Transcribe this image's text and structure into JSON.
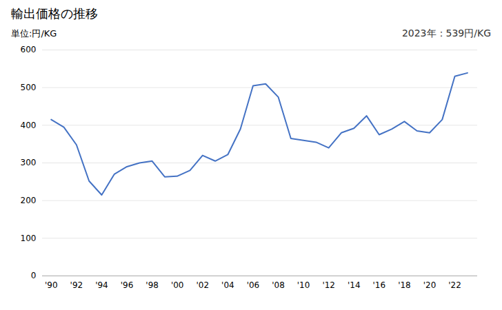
{
  "chart_data": {
    "type": "line",
    "title": "輸出価格の推移",
    "ylabel": "単位:円/KG",
    "annotation": "2023年：539円/KG",
    "x": [
      1990,
      1991,
      1992,
      1993,
      1994,
      1995,
      1996,
      1997,
      1998,
      1999,
      2000,
      2001,
      2002,
      2003,
      2004,
      2005,
      2006,
      2007,
      2008,
      2009,
      2010,
      2011,
      2012,
      2013,
      2014,
      2015,
      2016,
      2017,
      2018,
      2019,
      2020,
      2021,
      2022,
      2023
    ],
    "values": [
      415,
      395,
      348,
      252,
      215,
      270,
      290,
      300,
      305,
      263,
      265,
      280,
      320,
      305,
      322,
      390,
      505,
      510,
      475,
      365,
      360,
      355,
      340,
      380,
      392,
      425,
      375,
      390,
      410,
      385,
      380,
      415,
      530,
      539
    ],
    "color": "#4472C4",
    "xlim": [
      1989.3,
      2023.8
    ],
    "xticks": [
      {
        "value": 1990,
        "label": "'90"
      },
      {
        "value": 1992,
        "label": "'92"
      },
      {
        "value": 1994,
        "label": "'94"
      },
      {
        "value": 1996,
        "label": "'96"
      },
      {
        "value": 1998,
        "label": "'98"
      },
      {
        "value": 2000,
        "label": "'00"
      },
      {
        "value": 2002,
        "label": "'02"
      },
      {
        "value": 2004,
        "label": "'04"
      },
      {
        "value": 2006,
        "label": "'06"
      },
      {
        "value": 2008,
        "label": "'08"
      },
      {
        "value": 2010,
        "label": "'10"
      },
      {
        "value": 2012,
        "label": "'12"
      },
      {
        "value": 2014,
        "label": "'14"
      },
      {
        "value": 2016,
        "label": "'16"
      },
      {
        "value": 2018,
        "label": "'18"
      },
      {
        "value": 2020,
        "label": "'20"
      },
      {
        "value": 2022,
        "label": "'22"
      }
    ],
    "ylim": [
      0,
      600
    ],
    "yticks": [
      0,
      100,
      200,
      300,
      400,
      500,
      600
    ],
    "grid": "y"
  }
}
